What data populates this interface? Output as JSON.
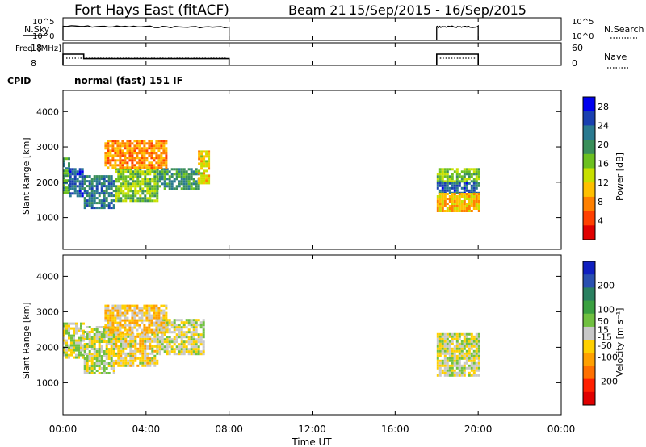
{
  "header": {
    "station": "Fort Hays East (fitACF)",
    "beam_label": "Beam 21",
    "date_range": "15/Sep/2015 - 16/Sep/2015"
  },
  "mode_label": "normal (fast) 151 IF",
  "colors": {
    "nsky_trace": "#000000",
    "nsearch_trace": "#000000",
    "frame": "#000000"
  },
  "chart_data": [
    {
      "type": "line",
      "panel": "noise",
      "ylabel_left": "N.Sky",
      "ylabel_right": "N.Search",
      "yticks": [
        "10^0",
        "10^5"
      ],
      "x_unit": "hours UT",
      "segments": [
        {
          "x_start": 0.0,
          "x_end": 8.0,
          "level_start": 0.62,
          "level_end": 0.58
        },
        {
          "x_start": 18.0,
          "x_end": 20.0,
          "level_start": 0.6,
          "level_end": 0.6
        }
      ]
    },
    {
      "type": "line",
      "panel": "frequency_nave",
      "ylabel_left": "Freq. [MHz]",
      "ylabel_right": "Nave",
      "yticks_left": [
        "8",
        "18"
      ],
      "yticks_right": [
        "0",
        "60"
      ],
      "ylim": [
        8,
        18
      ],
      "series": [
        {
          "name": "Freq.",
          "points": [
            [
              0.0,
              8
            ],
            [
              0.0,
              13
            ],
            [
              1.0,
              13
            ],
            [
              1.0,
              11
            ],
            [
              8.0,
              11
            ],
            [
              8.0,
              8
            ]
          ]
        },
        {
          "name": "Nave",
          "points": [
            [
              18.0,
              8
            ],
            [
              18.0,
              13
            ],
            [
              20.0,
              13
            ],
            [
              20.0,
              8
            ]
          ]
        }
      ]
    },
    {
      "type": "heatmap",
      "panel": "power",
      "ylabel": "Slant Range [km]",
      "ylim": [
        100,
        4600
      ],
      "yticks": [
        1000,
        2000,
        3000,
        4000
      ],
      "colorbar_label": "Power [dB]",
      "colorbar_ticks": [
        4,
        8,
        12,
        16,
        20,
        24,
        28
      ],
      "colorbar_range": [
        0,
        30
      ],
      "colorbar_colors": [
        "#0000ee",
        "#1a40b0",
        "#2a7a90",
        "#3a8f5a",
        "#6cc020",
        "#c8e000",
        "#ffc000",
        "#ff8000",
        "#ff4000",
        "#e00000"
      ],
      "regions": [
        {
          "x0": 0.0,
          "x1": 0.3,
          "r0": 1700,
          "r1": 2700,
          "value": 20
        },
        {
          "x0": 0.3,
          "x1": 1.0,
          "r0": 1600,
          "r1": 2400,
          "value": 24
        },
        {
          "x0": 1.0,
          "x1": 2.5,
          "r0": 1300,
          "r1": 2200,
          "value": 22
        },
        {
          "x0": 2.5,
          "x1": 4.5,
          "r0": 1500,
          "r1": 2400,
          "value": 16
        },
        {
          "x0": 4.5,
          "x1": 6.5,
          "r0": 1800,
          "r1": 2400,
          "value": 20
        },
        {
          "x0": 6.5,
          "x1": 7.0,
          "r0": 2000,
          "r1": 2900,
          "value": 12
        },
        {
          "x0": 2.0,
          "x1": 5.0,
          "r0": 2400,
          "r1": 3200,
          "value": 8
        },
        {
          "x0": 18.0,
          "x1": 20.0,
          "r0": 2000,
          "r1": 2400,
          "value": 16
        },
        {
          "x0": 18.0,
          "x1": 20.0,
          "r0": 1700,
          "r1": 2000,
          "value": 24
        },
        {
          "x0": 18.0,
          "x1": 20.0,
          "r0": 1200,
          "r1": 1700,
          "value": 10
        }
      ]
    },
    {
      "type": "heatmap",
      "panel": "velocity",
      "ylabel": "Slant Range [km]",
      "ylim": [
        100,
        4600
      ],
      "yticks": [
        1000,
        2000,
        3000,
        4000
      ],
      "colorbar_label": "Velocity [m s⁻¹]",
      "colorbar_ticks": [
        200,
        100,
        50,
        15,
        -15,
        -50,
        -100,
        -200
      ],
      "colorbar_range": [
        -300,
        300
      ],
      "colorbar_colors": [
        "#1020c0",
        "#2a50b0",
        "#2a8060",
        "#3aa040",
        "#70c040",
        "#c8c8c8",
        "#ffd000",
        "#ffa000",
        "#ff7000",
        "#ff2000",
        "#e00000"
      ],
      "regions": [
        {
          "x0": 0.0,
          "x1": 1.0,
          "r0": 1700,
          "r1": 2700,
          "value": 0
        },
        {
          "x0": 1.0,
          "x1": 2.5,
          "r0": 1300,
          "r1": 2600,
          "value": 0
        },
        {
          "x0": 2.5,
          "x1": 4.5,
          "r0": 1500,
          "r1": 2400,
          "value": -30
        },
        {
          "x0": 4.5,
          "x1": 6.8,
          "r0": 1800,
          "r1": 2800,
          "value": 0
        },
        {
          "x0": 2.0,
          "x1": 5.0,
          "r0": 2400,
          "r1": 3200,
          "value": -60
        },
        {
          "x0": 18.0,
          "x1": 20.0,
          "r0": 1200,
          "r1": 2400,
          "value": 0
        }
      ]
    }
  ],
  "xaxis": {
    "label": "Time UT",
    "ticks": [
      "00:00",
      "04:00",
      "08:00",
      "12:00",
      "16:00",
      "20:00",
      "00:00"
    ],
    "range_hours": [
      0,
      24
    ]
  }
}
